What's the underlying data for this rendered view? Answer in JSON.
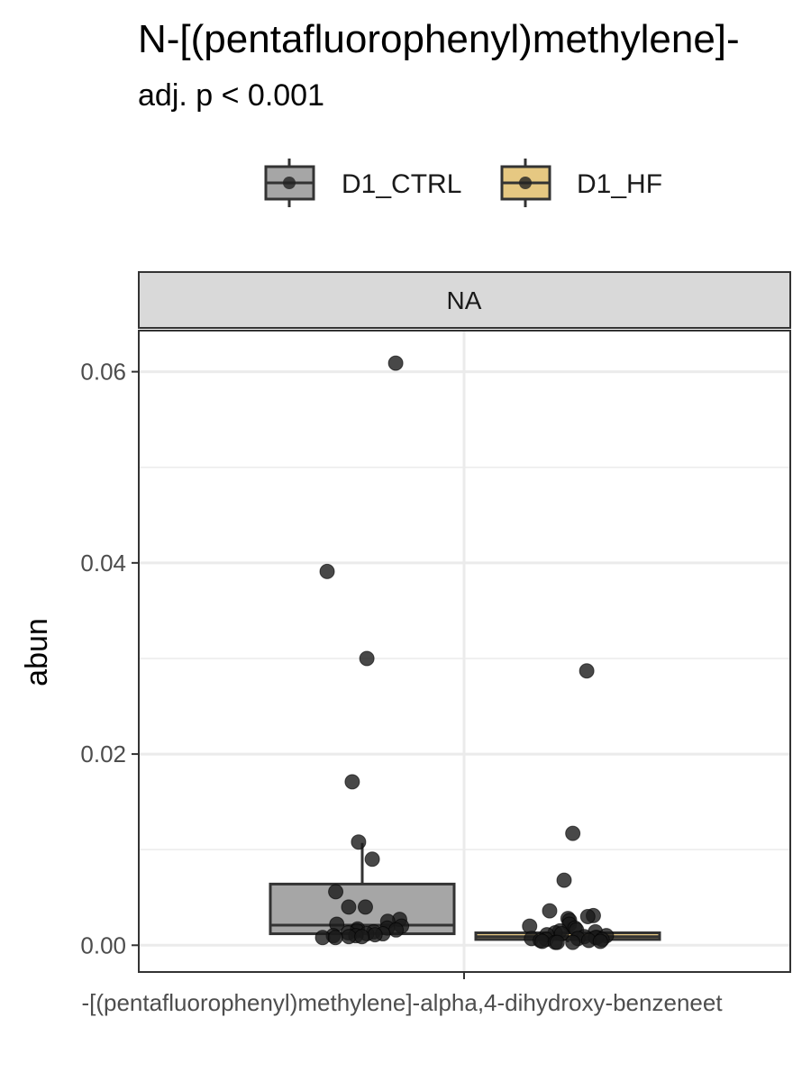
{
  "chart_data": {
    "type": "box",
    "title": "N-[(pentafluorophenyl)methylene]-",
    "subtitle": "adj. p < 0.001",
    "facet_label": "NA",
    "ylabel": "abun",
    "x_tick_label": "-[(pentafluorophenyl)methylene]-alpha,4-dihydroxy-benzeneet",
    "ylim": [
      -0.0028,
      0.0643
    ],
    "y_ticks": [
      0.0,
      0.02,
      0.04,
      0.06
    ],
    "y_tick_labels": [
      "0.00",
      "0.02",
      "0.04",
      "0.06"
    ],
    "grid": true,
    "legend_position": "top",
    "series": [
      {
        "name": "D1_CTRL",
        "color": "#a6a6a6",
        "box": {
          "whisker_low": 0.0008,
          "q1": 0.0012,
          "median": 0.0021,
          "q3": 0.0064,
          "whisker_high": 0.0107
        },
        "points": [
          0.0609,
          0.0391,
          0.03,
          0.0171,
          0.0108,
          0.009,
          0.0056,
          0.004,
          0.004,
          0.0027,
          0.0025,
          0.0022,
          0.002,
          0.0018,
          0.0017,
          0.0016,
          0.0015,
          0.0014,
          0.0013,
          0.0012,
          0.0012,
          0.0011,
          0.001,
          0.001,
          0.0009,
          0.0009,
          0.0008,
          0.0008
        ]
      },
      {
        "name": "D1_HF",
        "color": "#e6c882",
        "box": {
          "whisker_low": 0.0003,
          "q1": 0.0006,
          "median": 0.0009,
          "q3": 0.0013,
          "whisker_high": 0.0025
        },
        "points": [
          0.0287,
          0.0117,
          0.0068,
          0.0036,
          0.0031,
          0.003,
          0.0028,
          0.0026,
          0.0022,
          0.002,
          0.0018,
          0.0016,
          0.0015,
          0.0014,
          0.0013,
          0.0012,
          0.0011,
          0.001,
          0.0009,
          0.0008,
          0.0008,
          0.0007,
          0.0007,
          0.0006,
          0.0006,
          0.0005,
          0.0005,
          0.0004,
          0.0004,
          0.0003,
          0.0003,
          0.0003
        ]
      }
    ]
  }
}
